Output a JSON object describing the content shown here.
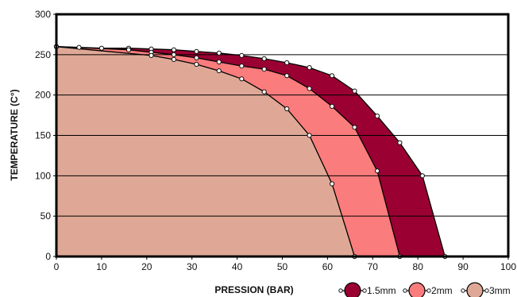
{
  "chart_data": {
    "type": "area",
    "title": "",
    "xlabel": "PRESSION (BAR)",
    "ylabel": "TEMPERATURE  (C°)",
    "xlim": [
      0,
      100
    ],
    "ylim": [
      0,
      300
    ],
    "xticks": [
      0,
      10,
      20,
      30,
      40,
      50,
      60,
      70,
      80,
      90,
      100
    ],
    "yticks": [
      0,
      50,
      100,
      150,
      200,
      250,
      300
    ],
    "grid": "horizontal",
    "legend_position": "bottom-right",
    "series": [
      {
        "name": "1.5mm",
        "color": "#9b0033",
        "points": [
          [
            0,
            260
          ],
          [
            5,
            259
          ],
          [
            10,
            258
          ],
          [
            16,
            258
          ],
          [
            21,
            257
          ],
          [
            26,
            256
          ],
          [
            31,
            254
          ],
          [
            36,
            252
          ],
          [
            41,
            249
          ],
          [
            46,
            245
          ],
          [
            51,
            240
          ],
          [
            56,
            234
          ],
          [
            61,
            224
          ],
          [
            66,
            205
          ],
          [
            71,
            174
          ],
          [
            76,
            141
          ],
          [
            81,
            100
          ],
          [
            86,
            0
          ]
        ]
      },
      {
        "name": "2mm",
        "color": "#fb7c7c",
        "points": [
          [
            0,
            260
          ],
          [
            16,
            256
          ],
          [
            21,
            253
          ],
          [
            26,
            250
          ],
          [
            31,
            246
          ],
          [
            36,
            241
          ],
          [
            41,
            236
          ],
          [
            46,
            232
          ],
          [
            51,
            224
          ],
          [
            56,
            208
          ],
          [
            61,
            186
          ],
          [
            66,
            160
          ],
          [
            71,
            106
          ],
          [
            76,
            0
          ]
        ]
      },
      {
        "name": "3mm",
        "color": "#dfa896",
        "points": [
          [
            0,
            260
          ],
          [
            21,
            249
          ],
          [
            26,
            244
          ],
          [
            31,
            238
          ],
          [
            36,
            230
          ],
          [
            41,
            220
          ],
          [
            46,
            204
          ],
          [
            51,
            183
          ],
          [
            56,
            150
          ],
          [
            61,
            90
          ],
          [
            66,
            0
          ]
        ]
      }
    ]
  }
}
